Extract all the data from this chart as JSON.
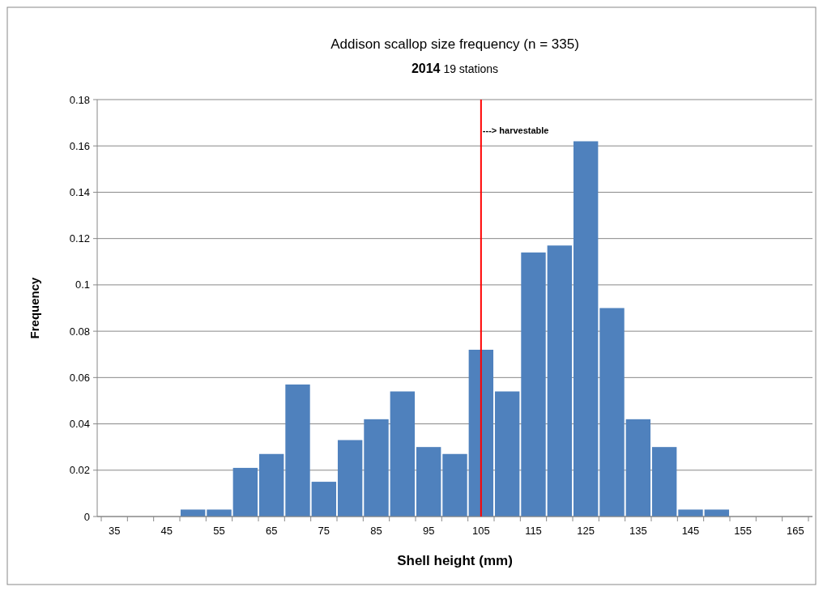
{
  "chart_data": {
    "type": "bar",
    "title": "Addison scallop size frequency (n = 335)",
    "subtitle": "2014  19 stations",
    "xlabel": "Shell height (mm)",
    "ylabel": "Frequency",
    "categories": [
      "35",
      null,
      "45",
      null,
      "55",
      null,
      "65",
      null,
      "75",
      null,
      "85",
      null,
      "95",
      null,
      "105",
      null,
      "115",
      null,
      "125",
      null,
      "135",
      null,
      "145",
      null,
      "155",
      null,
      "165"
    ],
    "values": [
      0,
      0,
      0,
      0.003,
      0.003,
      0.021,
      0.027,
      0.057,
      0.015,
      0.033,
      0.042,
      0.054,
      0.03,
      0.027,
      0.072,
      0.054,
      0.114,
      0.117,
      0.162,
      0.09,
      0.042,
      0.03,
      0.003,
      0.003,
      0,
      0,
      0
    ],
    "color": "#4f81bd",
    "ylim": [
      0,
      0.18
    ],
    "yticks": [
      0,
      0.02,
      0.04,
      0.06,
      0.08,
      0.1,
      0.12,
      0.14,
      0.16,
      0.18
    ],
    "grid": "y",
    "ref_lines": [
      {
        "axis": "x",
        "value": "105",
        "label": "---> harvestable",
        "color": "#ff0000"
      }
    ]
  }
}
